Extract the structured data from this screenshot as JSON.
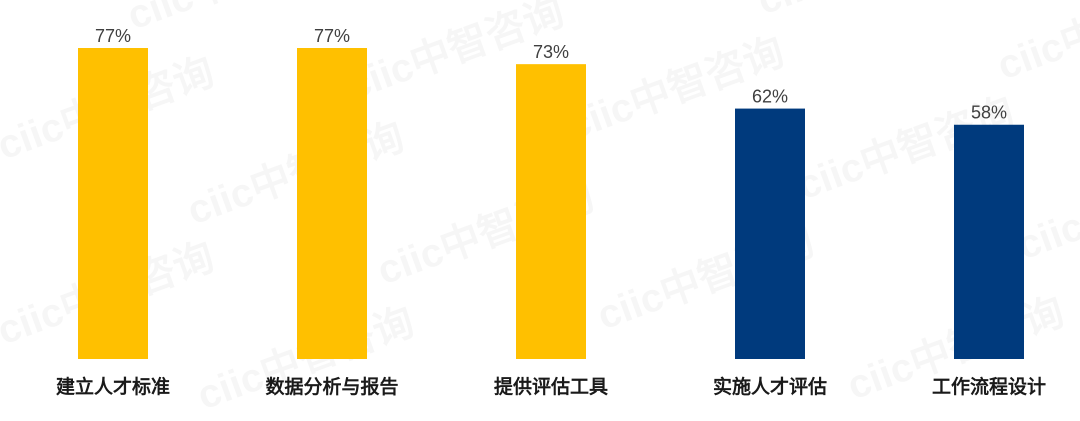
{
  "chart_data": {
    "type": "bar",
    "watermark": "ciic中智咨询",
    "categories": [
      "建立人才标准",
      "数据分析与报告",
      "提供评估工具",
      "实施人才评估",
      "工作流程设计"
    ],
    "values": [
      77,
      77,
      73,
      62,
      58
    ],
    "value_labels": [
      "77%",
      "77%",
      "73%",
      "62%",
      "58%"
    ],
    "colors": [
      "#FFC000",
      "#FFC000",
      "#FFC000",
      "#003A7D",
      "#003A7D"
    ]
  }
}
